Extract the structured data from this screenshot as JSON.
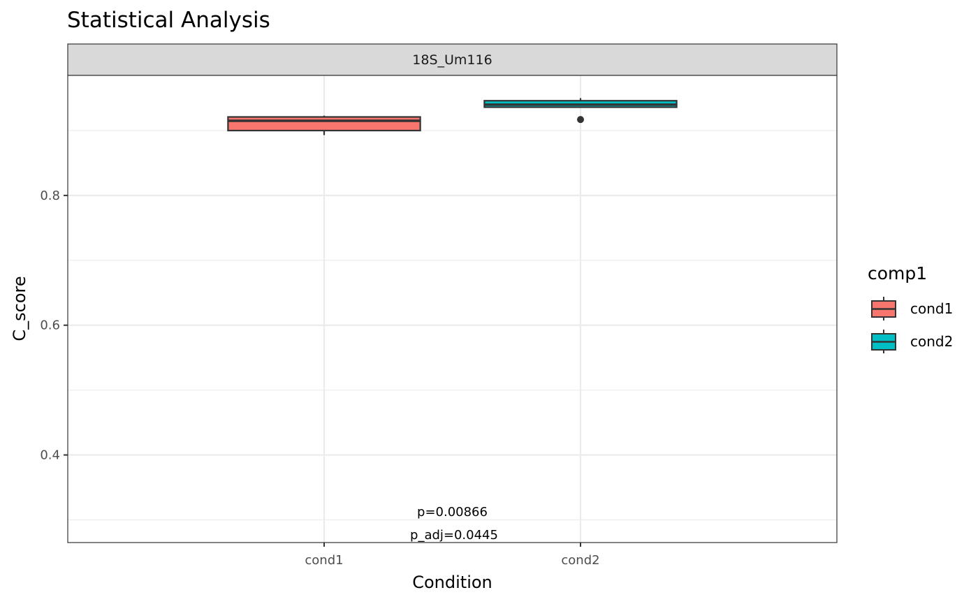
{
  "chart_data": {
    "type": "box",
    "title": "Statistical Analysis",
    "facet": "18S_Um116",
    "xlabel": "Condition",
    "ylabel": "C_score",
    "categories": [
      "cond1",
      "cond2"
    ],
    "ylim": [
      0.265,
      0.985
    ],
    "yticks": [
      0.4,
      0.6,
      0.8
    ],
    "ytick_labels": [
      "0.4",
      "0.6",
      "0.8"
    ],
    "grid": true,
    "boxes": [
      {
        "name": "cond1",
        "color": "#F8766D",
        "whisker_low": 0.893,
        "q1": 0.9,
        "median": 0.915,
        "q3": 0.921,
        "whisker_high": 0.923,
        "outliers": []
      },
      {
        "name": "cond2",
        "color": "#00BFC4",
        "whisker_low": 0.935,
        "q1": 0.936,
        "median": 0.94,
        "q3": 0.946,
        "whisker_high": 0.95,
        "outliers": [
          0.917
        ]
      }
    ],
    "annotations": [
      "p=0.00866",
      "p_adj=0.0445"
    ],
    "legend": {
      "title": "comp1",
      "position": "right",
      "items": [
        {
          "label": "cond1",
          "color": "#F8766D"
        },
        {
          "label": "cond2",
          "color": "#00BFC4"
        }
      ]
    }
  }
}
